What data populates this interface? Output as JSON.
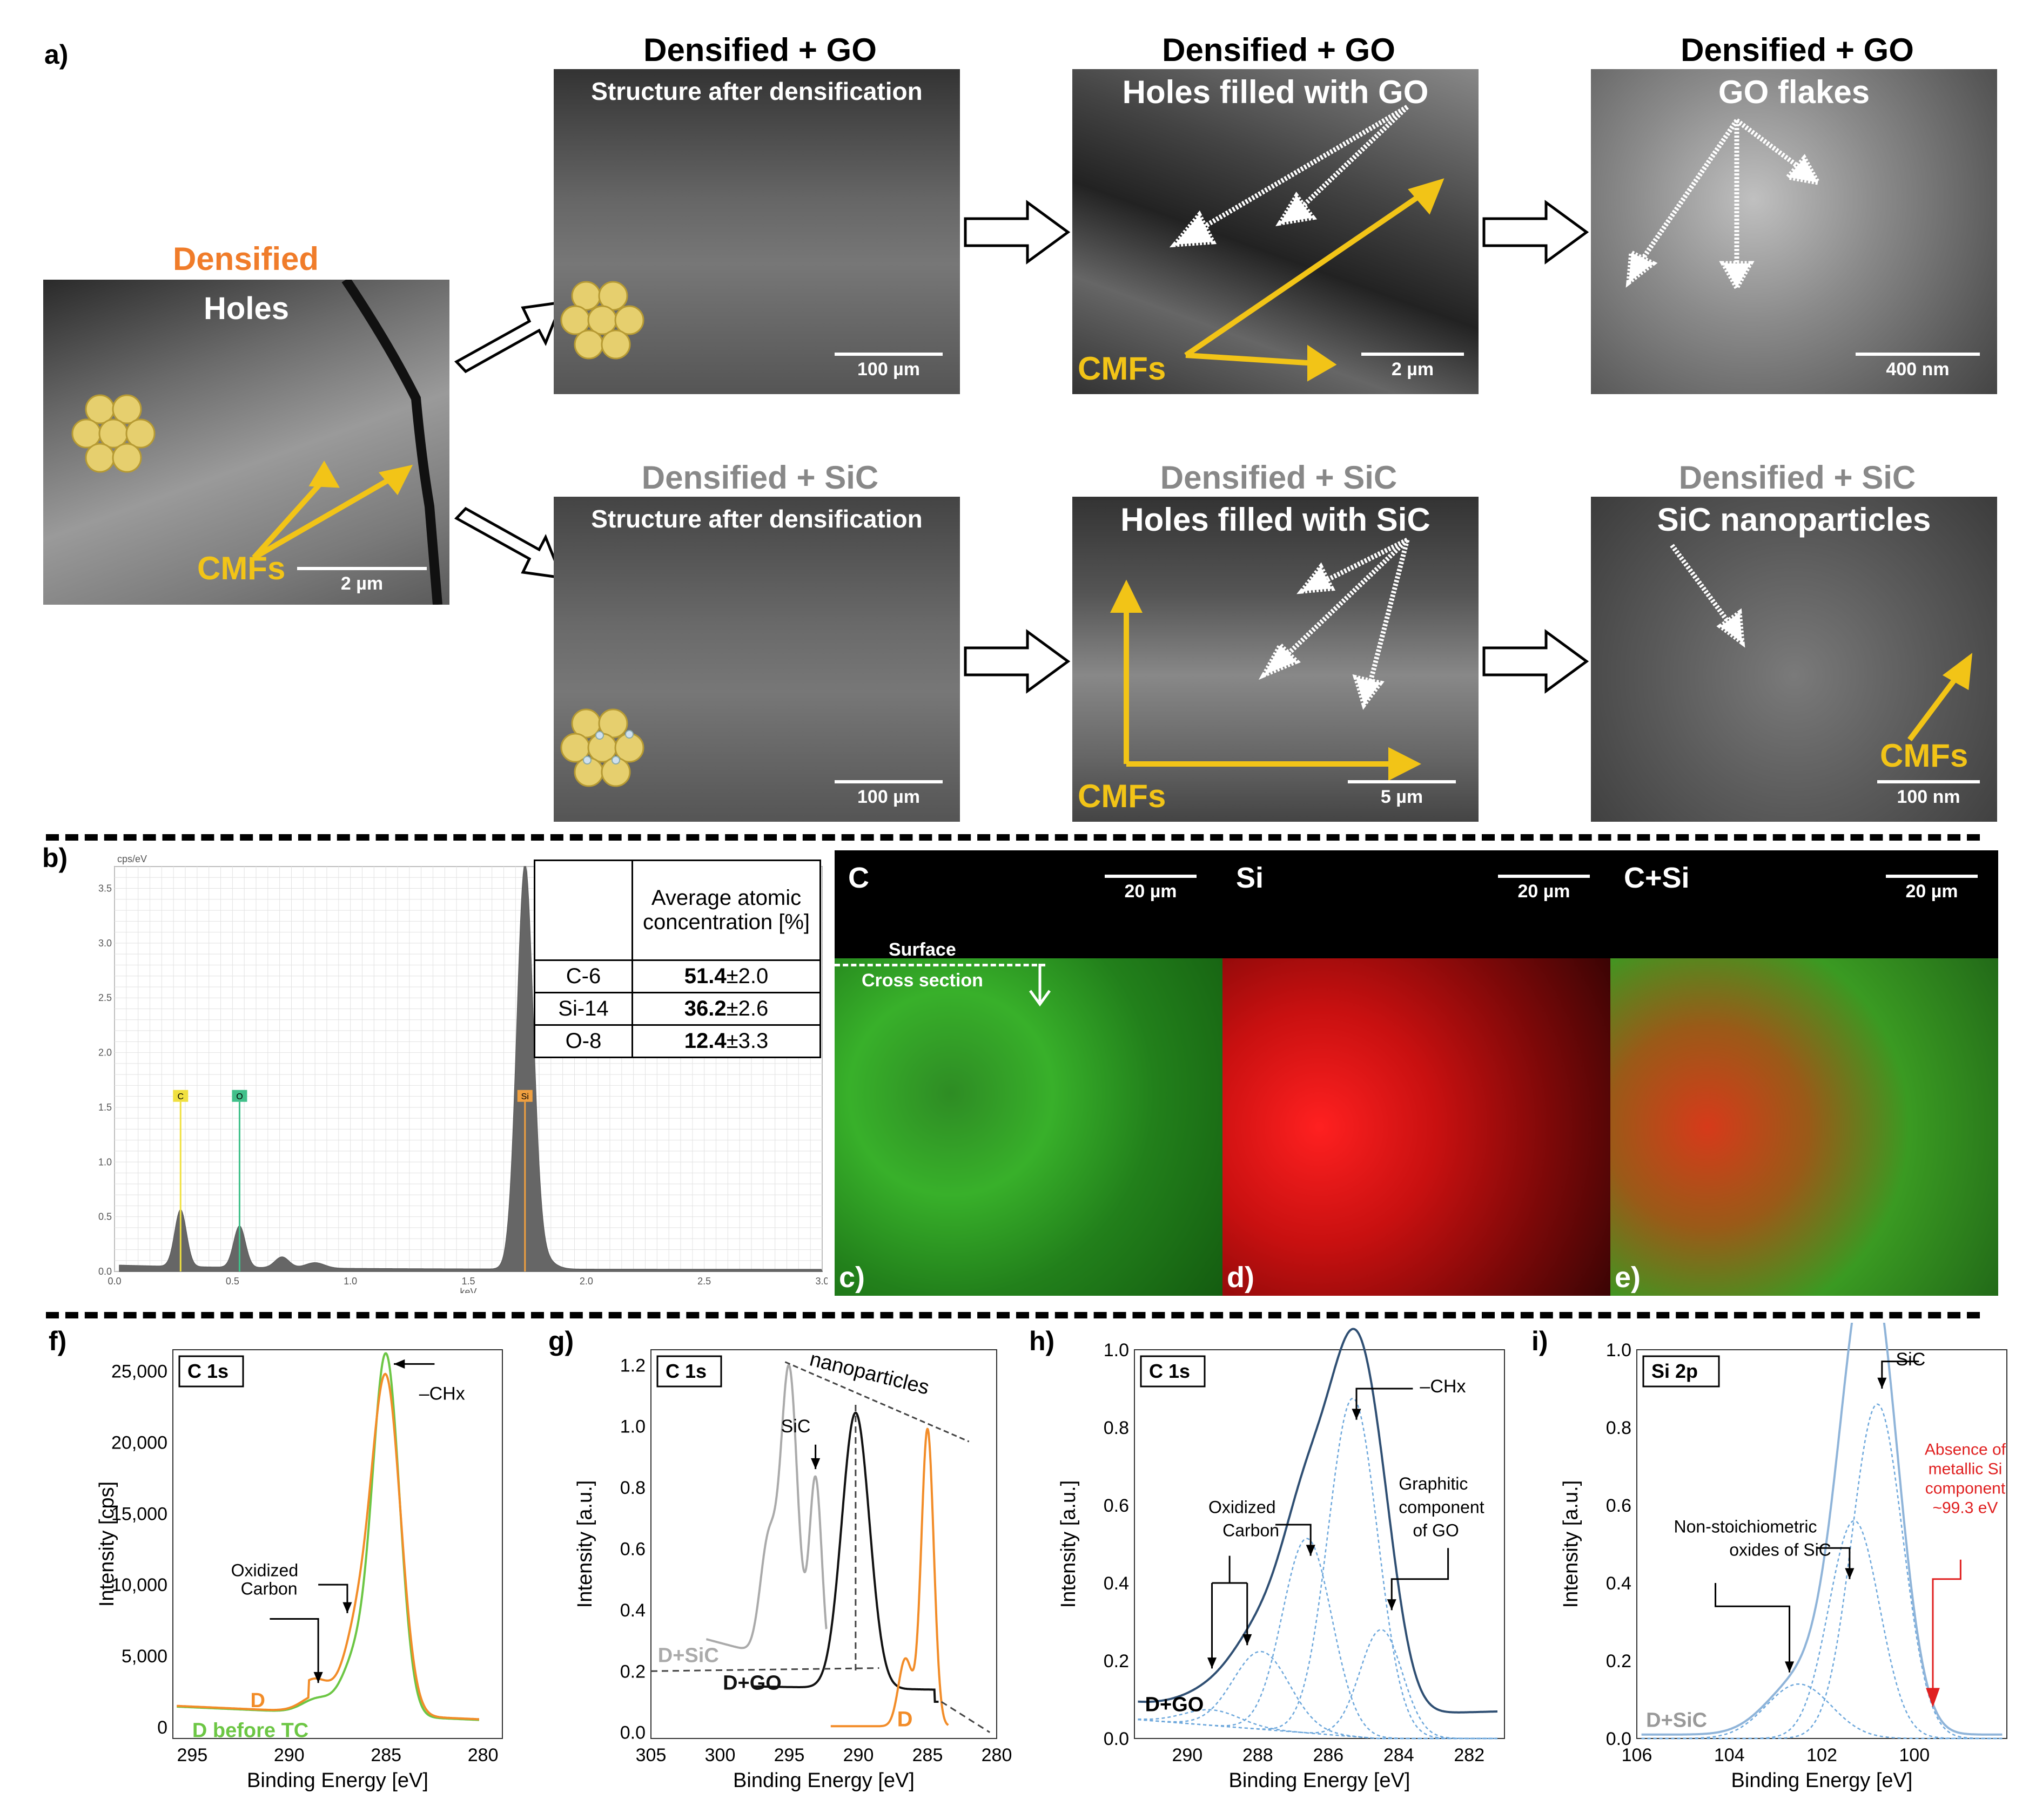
{
  "panel_labels": {
    "a": "a)",
    "b": "b)",
    "c": "c)",
    "d": "d)",
    "e": "e)",
    "f": "f)",
    "g": "g)",
    "h": "h)",
    "i": "i)"
  },
  "panel_a": {
    "start": {
      "title": "Densified",
      "subtitle": "Holes",
      "scale": "2 µm",
      "annot": "CMFs",
      "title_color": "#f07c2a"
    },
    "go_row": {
      "titles": [
        "Densified + GO",
        "Densified + GO",
        "Densified + GO"
      ],
      "subtitles": [
        "Structure after densification",
        "Holes filled with GO",
        "GO flakes"
      ],
      "scales": [
        "100 µm",
        "2 µm",
        "400 nm"
      ],
      "annot": "CMFs"
    },
    "sic_row": {
      "titles": [
        "Densified + SiC",
        "Densified + SiC",
        "Densified + SiC"
      ],
      "subtitles": [
        "Structure after densification",
        "Holes filled with SiC",
        "SiC nanoparticles"
      ],
      "scales": [
        "100 µm",
        "5 µm",
        "100 nm"
      ],
      "annot": "CMFs",
      "title_color": "#888888"
    },
    "arrow_color": "#f2c417"
  },
  "panel_b": {
    "chart_data": {
      "type": "area",
      "ylabel": "cps/eV",
      "xlabel": "keV",
      "xlim": [
        0,
        3.0
      ],
      "ylim": [
        0,
        3.7
      ],
      "xticks": [
        "0.0",
        "0.5",
        "1.0",
        "1.5",
        "2.0",
        "2.5",
        "3.0"
      ],
      "yticks": [
        "0.0",
        "0.5",
        "1.0",
        "1.5",
        "2.0",
        "2.5",
        "3.0",
        "3.5"
      ],
      "peaks": [
        {
          "label": "C",
          "x": 0.28,
          "y": 0.52
        },
        {
          "label": "O",
          "x": 0.53,
          "y": 0.38
        },
        {
          "label": "Si",
          "x": 1.74,
          "y": 3.65
        }
      ],
      "marker_height": 1.55,
      "grid": true
    },
    "table": {
      "header": "Average atomic concentration [%]",
      "rows": [
        {
          "el": "C-6",
          "val": "51.4",
          "err": "±2.0"
        },
        {
          "el": "Si-14",
          "val": "36.2",
          "err": "±2.6"
        },
        {
          "el": "O-8",
          "val": "12.4",
          "err": "±3.3"
        }
      ]
    }
  },
  "maps": {
    "c": {
      "title": "C",
      "scale": "20 µm",
      "surface": "Surface",
      "cross": "Cross section"
    },
    "d": {
      "title": "Si",
      "scale": "20 µm"
    },
    "e": {
      "title": "C+Si",
      "scale": "20 µm"
    }
  },
  "panel_f": {
    "chart_data": {
      "type": "line",
      "box_label": "C 1s",
      "xlabel": "Binding Energy [eV]",
      "ylabel": "Intensity [cps]",
      "xlim": [
        296,
        279
      ],
      "ylim": [
        -800,
        26500
      ],
      "xticks": [
        "295",
        "290",
        "285",
        "280"
      ],
      "yticks": [
        "0",
        "5,000",
        "10,000",
        "15,000",
        "20,000",
        "25,000"
      ],
      "series": [
        {
          "name": "D",
          "color": "#f28c28"
        },
        {
          "name": "D before TC",
          "color": "#6cc644"
        }
      ],
      "annotations": [
        "Oxidized Carbon",
        "–CHx"
      ]
    }
  },
  "panel_g": {
    "chart_data": {
      "type": "line",
      "box_label": "C 1s",
      "xlabel": "Binding Energy [eV]",
      "ylabel": "Intensity [a.u.]",
      "xlim": [
        305,
        280
      ],
      "ylim": [
        -0.02,
        1.25
      ],
      "xticks": [
        "305",
        "300",
        "295",
        "290",
        "285",
        "280"
      ],
      "yticks": [
        "0.0",
        "0.2",
        "0.4",
        "0.6",
        "0.8",
        "1.0",
        "1.2"
      ],
      "series": [
        {
          "name": "D+SiC",
          "color": "#aaaaaa"
        },
        {
          "name": "D+GO",
          "color": "#111111"
        },
        {
          "name": "D",
          "color": "#f28c28"
        }
      ],
      "annotations": [
        "SiC",
        "nanoparticles"
      ]
    }
  },
  "panel_h": {
    "chart_data": {
      "type": "line",
      "box_label": "C 1s",
      "xlabel": "Binding Energy [eV]",
      "ylabel": "Intensity [a.u.]",
      "xlim": [
        291.5,
        281
      ],
      "ylim": [
        0,
        1.0
      ],
      "xticks": [
        "290",
        "288",
        "286",
        "284",
        "282"
      ],
      "yticks": [
        "0.0",
        "0.2",
        "0.4",
        "0.6",
        "0.8",
        "1.0"
      ],
      "series": [
        {
          "name": "D+GO",
          "color": "#2f4f73"
        }
      ],
      "annotations": [
        "–CHx",
        "Oxidized Carbon",
        "Graphitic component of GO"
      ]
    }
  },
  "panel_i": {
    "chart_data": {
      "type": "line",
      "box_label": "Si 2p",
      "xlabel": "Binding Energy [eV]",
      "ylabel": "Intensity [a.u.]",
      "xlim": [
        106,
        98
      ],
      "ylim": [
        0,
        1.0
      ],
      "xticks": [
        "106",
        "104",
        "102",
        "100"
      ],
      "yticks": [
        "0.0",
        "0.2",
        "0.4",
        "0.6",
        "0.8",
        "1.0"
      ],
      "series": [
        {
          "name": "D+SiC",
          "color": "#8fb4d9"
        }
      ],
      "annotations": [
        "SiC",
        "Non-stoichiometric oxides of SiC",
        "Absence of metallic Si component ~99.3 eV"
      ]
    }
  }
}
